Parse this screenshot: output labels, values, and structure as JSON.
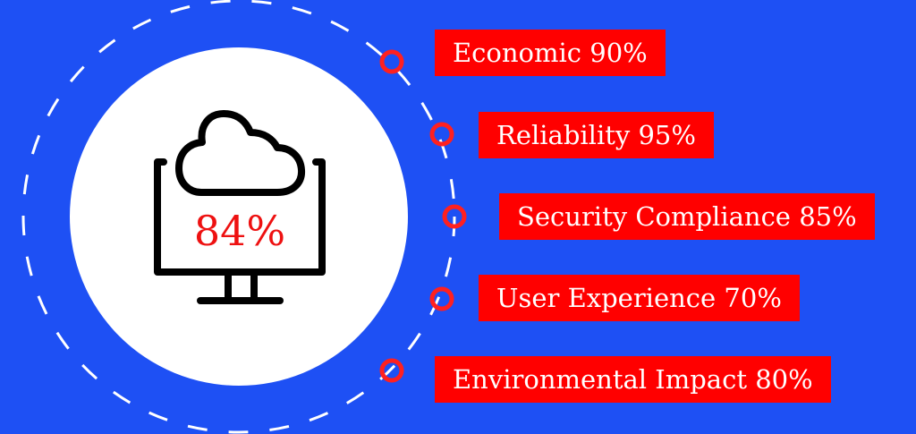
{
  "center": {
    "value": "84%",
    "icon": "cloud-monitor-icon"
  },
  "items": [
    {
      "label": "Economic 90%"
    },
    {
      "label": "Reliability 95%"
    },
    {
      "label": "Security Compliance 85%"
    },
    {
      "label": "User Experience 70%"
    },
    {
      "label": "Environmental Impact 80%"
    }
  ],
  "colors": {
    "background": "#1e50f4",
    "accent": "#ff0000",
    "circle": "#ffffff"
  }
}
